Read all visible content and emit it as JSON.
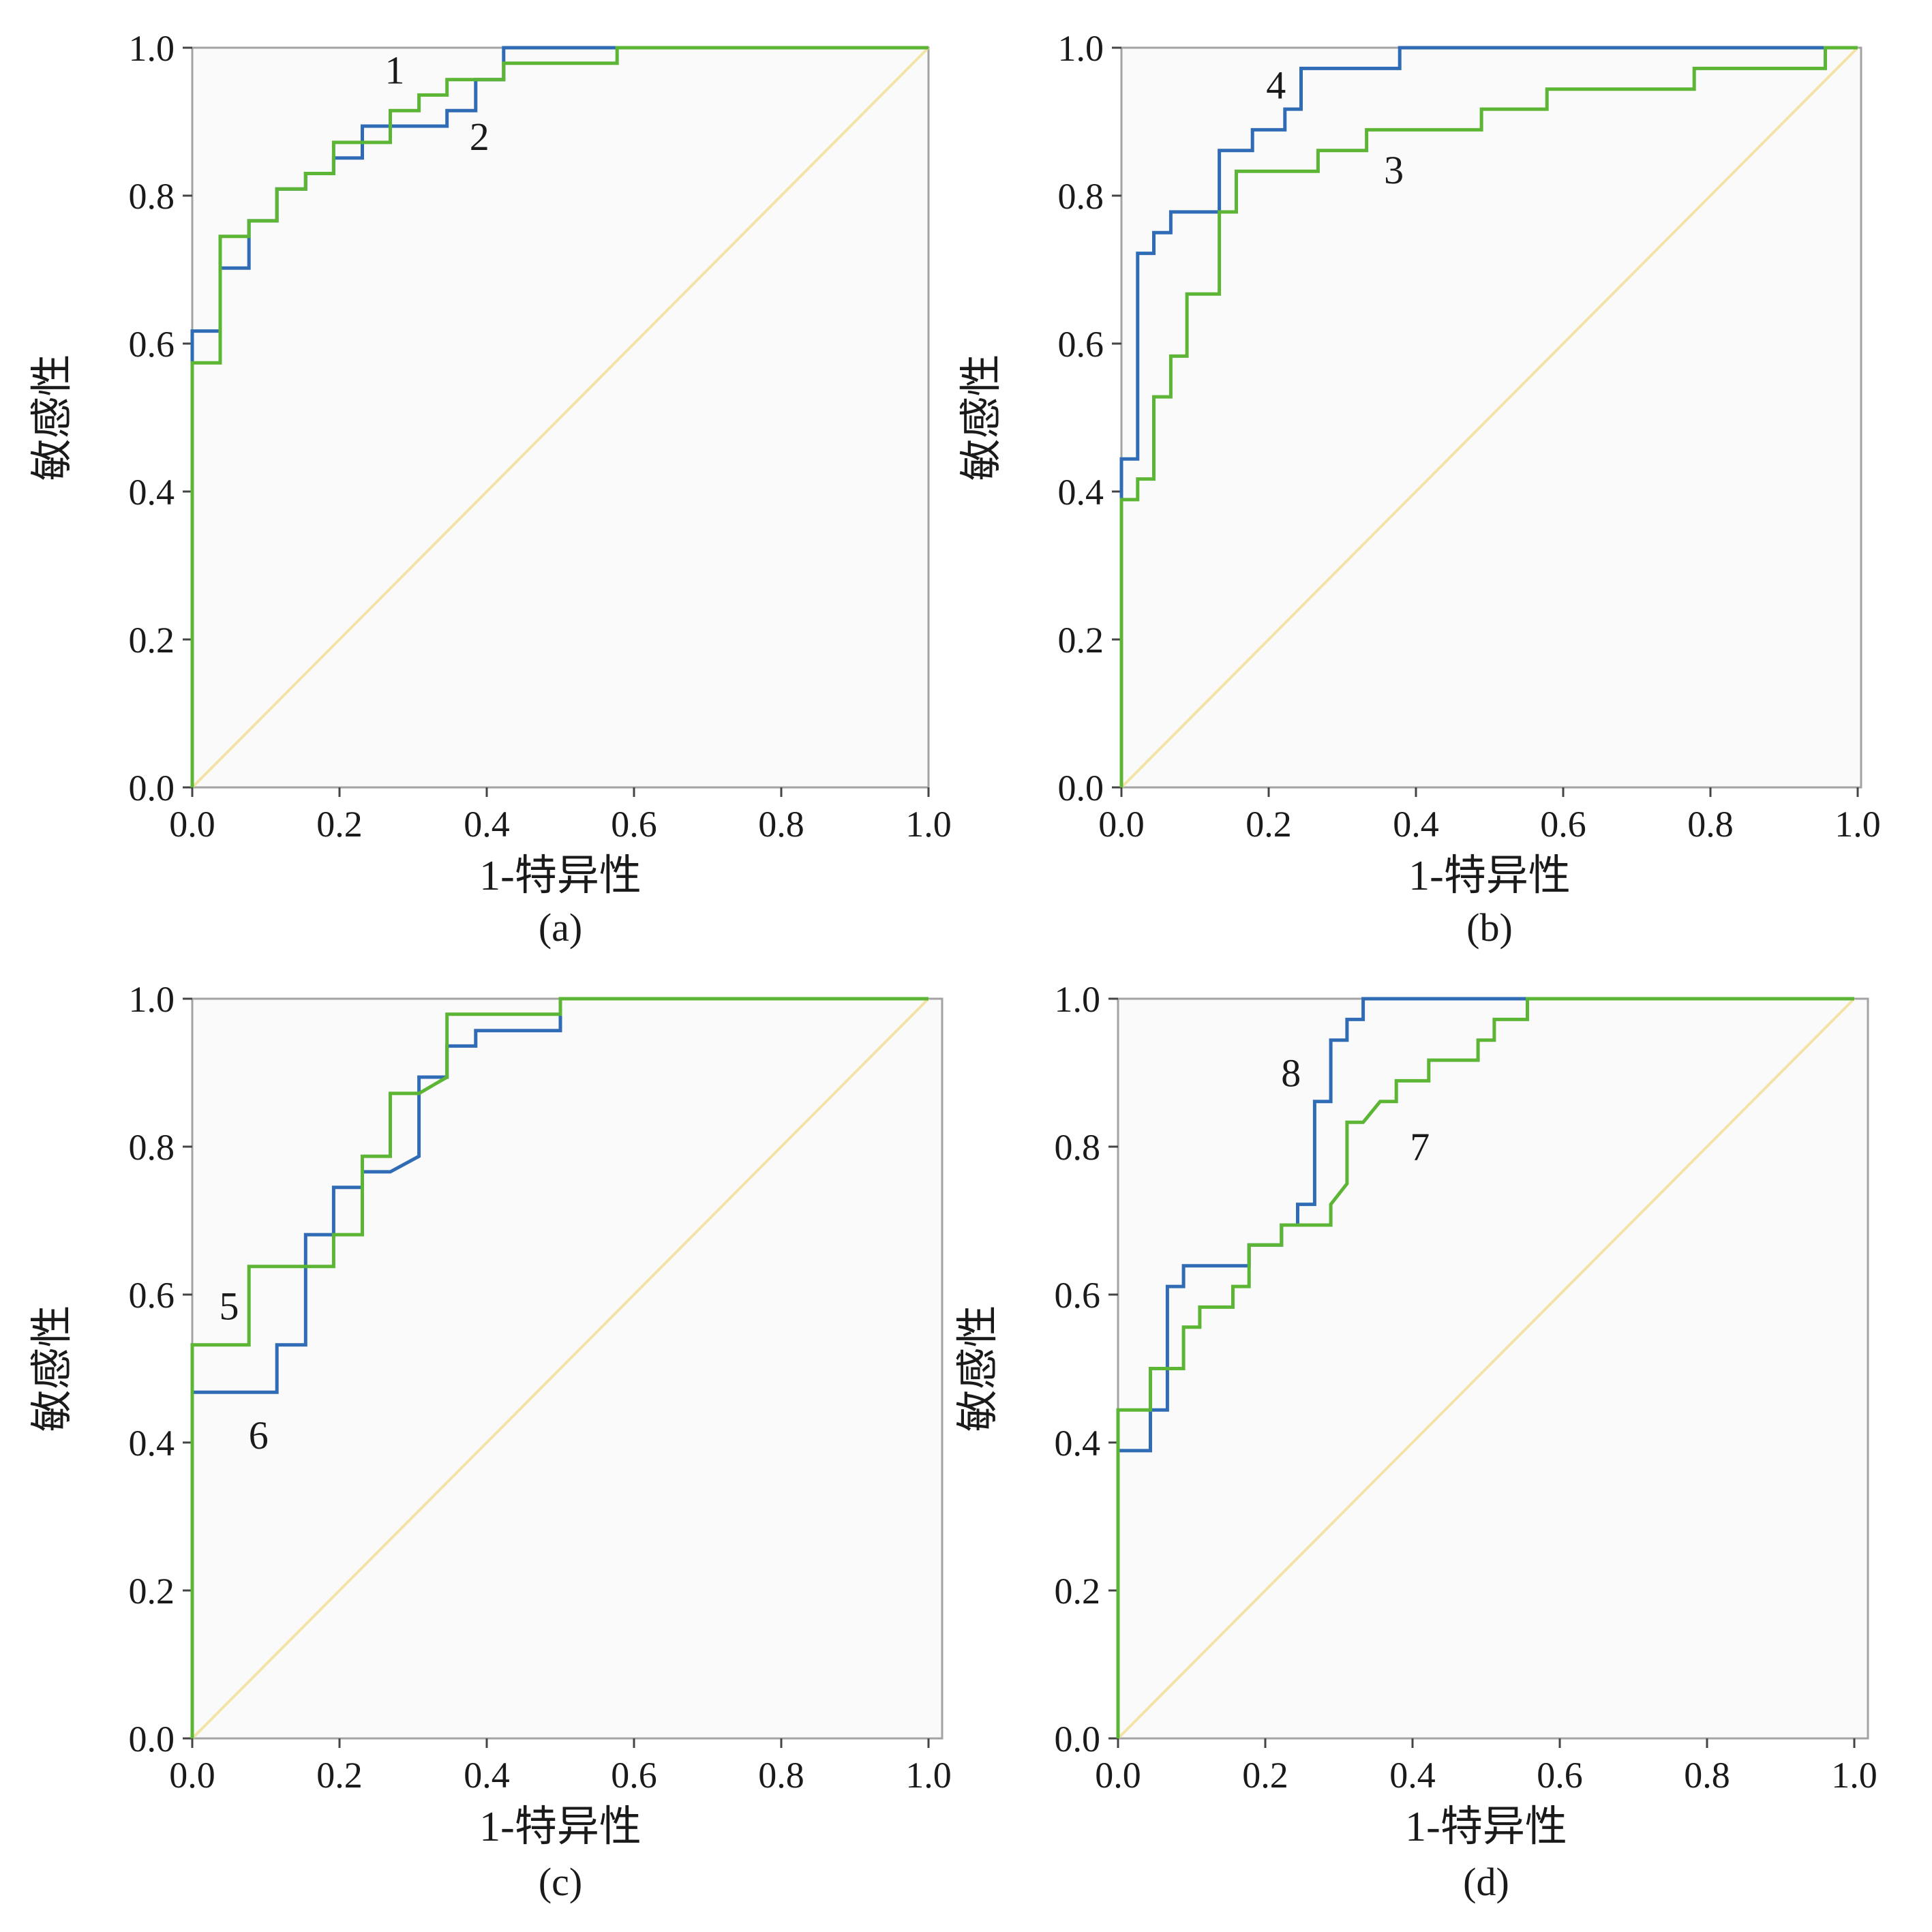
{
  "colors": {
    "plot_background": "#fbfafa",
    "frame": "#a3a3a3",
    "blue": "#2f6cb5",
    "green": "#5cb535",
    "reference": "#f3e3a6"
  },
  "chart_data": [
    {
      "type": "line",
      "panel": "(a)",
      "xlabel": "1-特异性",
      "ylabel": "敏感性",
      "xlim": [
        0,
        1
      ],
      "ylim": [
        0,
        1
      ],
      "xticks": [
        "0.0",
        "0.2",
        "0.4",
        "0.6",
        "0.8",
        "1.0"
      ],
      "yticks": [
        "0.0",
        "0.2",
        "0.4",
        "0.6",
        "0.8",
        "1.0"
      ],
      "reference_line": true,
      "series": [
        {
          "name": "2",
          "color": "blue",
          "label_at": [
            0.39,
            0.88
          ],
          "points": [
            [
              0,
              0
            ],
            [
              0,
              0.617
            ],
            [
              0.038,
              0.617
            ],
            [
              0.038,
              0.702
            ],
            [
              0.077,
              0.702
            ],
            [
              0.077,
              0.766
            ],
            [
              0.115,
              0.766
            ],
            [
              0.115,
              0.809
            ],
            [
              0.154,
              0.809
            ],
            [
              0.154,
              0.83
            ],
            [
              0.192,
              0.83
            ],
            [
              0.192,
              0.851
            ],
            [
              0.231,
              0.851
            ],
            [
              0.231,
              0.894
            ],
            [
              0.346,
              0.894
            ],
            [
              0.346,
              0.915
            ],
            [
              0.385,
              0.915
            ],
            [
              0.385,
              0.957
            ],
            [
              0.423,
              0.957
            ],
            [
              0.423,
              1.0
            ],
            [
              0.577,
              1.0
            ],
            [
              1.0,
              1.0
            ]
          ]
        },
        {
          "name": "1",
          "color": "green",
          "label_at": [
            0.275,
            0.97
          ],
          "points": [
            [
              0,
              0
            ],
            [
              0,
              0.574
            ],
            [
              0.038,
              0.574
            ],
            [
              0.038,
              0.745
            ],
            [
              0.077,
              0.745
            ],
            [
              0.077,
              0.766
            ],
            [
              0.115,
              0.766
            ],
            [
              0.115,
              0.809
            ],
            [
              0.154,
              0.809
            ],
            [
              0.154,
              0.83
            ],
            [
              0.192,
              0.83
            ],
            [
              0.192,
              0.872
            ],
            [
              0.269,
              0.872
            ],
            [
              0.269,
              0.915
            ],
            [
              0.308,
              0.915
            ],
            [
              0.308,
              0.936
            ],
            [
              0.346,
              0.936
            ],
            [
              0.346,
              0.957
            ],
            [
              0.423,
              0.957
            ],
            [
              0.423,
              0.979
            ],
            [
              0.577,
              0.979
            ],
            [
              0.577,
              1.0
            ],
            [
              1.0,
              1.0
            ]
          ]
        }
      ]
    },
    {
      "type": "line",
      "panel": "(b)",
      "xlabel": "1-特异性",
      "ylabel": "敏感性",
      "xlim": [
        0,
        1
      ],
      "ylim": [
        0,
        1
      ],
      "xticks": [
        "0.0",
        "0.2",
        "0.4",
        "0.6",
        "0.8",
        "1.0"
      ],
      "yticks": [
        "0.0",
        "0.2",
        "0.4",
        "0.6",
        "0.8",
        "1.0"
      ],
      "reference_line": true,
      "series": [
        {
          "name": "4",
          "color": "blue",
          "label_at": [
            0.21,
            0.95
          ],
          "points": [
            [
              0,
              0
            ],
            [
              0,
              0.444
            ],
            [
              0.022,
              0.444
            ],
            [
              0.022,
              0.722
            ],
            [
              0.044,
              0.722
            ],
            [
              0.044,
              0.75
            ],
            [
              0.067,
              0.75
            ],
            [
              0.067,
              0.778
            ],
            [
              0.133,
              0.778
            ],
            [
              0.133,
              0.861
            ],
            [
              0.178,
              0.861
            ],
            [
              0.178,
              0.889
            ],
            [
              0.222,
              0.889
            ],
            [
              0.222,
              0.917
            ],
            [
              0.244,
              0.917
            ],
            [
              0.244,
              0.972
            ],
            [
              0.378,
              0.972
            ],
            [
              0.378,
              1.0
            ],
            [
              1.0,
              1.0
            ]
          ]
        },
        {
          "name": "3",
          "color": "green",
          "label_at": [
            0.37,
            0.835
          ],
          "points": [
            [
              0,
              0
            ],
            [
              0,
              0.389
            ],
            [
              0.022,
              0.389
            ],
            [
              0.022,
              0.417
            ],
            [
              0.044,
              0.417
            ],
            [
              0.044,
              0.528
            ],
            [
              0.067,
              0.528
            ],
            [
              0.067,
              0.583
            ],
            [
              0.089,
              0.583
            ],
            [
              0.089,
              0.667
            ],
            [
              0.133,
              0.667
            ],
            [
              0.133,
              0.778
            ],
            [
              0.156,
              0.778
            ],
            [
              0.156,
              0.833
            ],
            [
              0.267,
              0.833
            ],
            [
              0.267,
              0.861
            ],
            [
              0.333,
              0.861
            ],
            [
              0.333,
              0.889
            ],
            [
              0.489,
              0.889
            ],
            [
              0.489,
              0.917
            ],
            [
              0.578,
              0.917
            ],
            [
              0.578,
              0.944
            ],
            [
              0.778,
              0.944
            ],
            [
              0.778,
              0.972
            ],
            [
              0.956,
              0.972
            ],
            [
              0.956,
              1.0
            ],
            [
              1.0,
              1.0
            ]
          ]
        }
      ]
    },
    {
      "type": "line",
      "panel": "(c)",
      "xlabel": "1-特异性",
      "ylabel": "敏感性",
      "xlim": [
        0,
        1
      ],
      "ylim": [
        0,
        1
      ],
      "xticks": [
        "0.0",
        "0.2",
        "0.4",
        "0.6",
        "0.8",
        "1.0"
      ],
      "yticks": [
        "0.0",
        "0.2",
        "0.4",
        "0.6",
        "0.8",
        "1.0"
      ],
      "reference_line": true,
      "series": [
        {
          "name": "6",
          "color": "blue",
          "label_at": [
            0.09,
            0.41
          ],
          "points": [
            [
              0,
              0
            ],
            [
              0,
              0.468
            ],
            [
              0.115,
              0.468
            ],
            [
              0.115,
              0.532
            ],
            [
              0.154,
              0.532
            ],
            [
              0.154,
              0.681
            ],
            [
              0.192,
              0.681
            ],
            [
              0.192,
              0.745
            ],
            [
              0.231,
              0.745
            ],
            [
              0.231,
              0.766
            ],
            [
              0.269,
              0.766
            ],
            [
              0.308,
              0.787
            ],
            [
              0.308,
              0.894
            ],
            [
              0.346,
              0.894
            ],
            [
              0.346,
              0.936
            ],
            [
              0.385,
              0.936
            ],
            [
              0.385,
              0.957
            ],
            [
              0.5,
              0.957
            ],
            [
              0.5,
              1.0
            ],
            [
              1.0,
              1.0
            ]
          ]
        },
        {
          "name": "5",
          "color": "green",
          "label_at": [
            0.05,
            0.585
          ],
          "points": [
            [
              0,
              0
            ],
            [
              0,
              0.532
            ],
            [
              0.077,
              0.532
            ],
            [
              0.077,
              0.638
            ],
            [
              0.192,
              0.638
            ],
            [
              0.192,
              0.681
            ],
            [
              0.231,
              0.681
            ],
            [
              0.231,
              0.787
            ],
            [
              0.269,
              0.787
            ],
            [
              0.269,
              0.872
            ],
            [
              0.308,
              0.872
            ],
            [
              0.346,
              0.894
            ],
            [
              0.346,
              0.979
            ],
            [
              0.5,
              0.979
            ],
            [
              0.5,
              1.0
            ],
            [
              1.0,
              1.0
            ]
          ]
        }
      ]
    },
    {
      "type": "line",
      "panel": "(d)",
      "xlabel": "1-特异性",
      "ylabel": "敏感性",
      "xlim": [
        0,
        1
      ],
      "ylim": [
        0,
        1
      ],
      "xticks": [
        "0.0",
        "0.2",
        "0.4",
        "0.6",
        "0.8",
        "1.0"
      ],
      "yticks": [
        "0.0",
        "0.2",
        "0.4",
        "0.6",
        "0.8",
        "1.0"
      ],
      "reference_line": true,
      "series": [
        {
          "name": "8",
          "color": "blue",
          "label_at": [
            0.235,
            0.9
          ],
          "points": [
            [
              0,
              0
            ],
            [
              0,
              0.389
            ],
            [
              0.044,
              0.389
            ],
            [
              0.044,
              0.444
            ],
            [
              0.067,
              0.444
            ],
            [
              0.067,
              0.611
            ],
            [
              0.089,
              0.611
            ],
            [
              0.089,
              0.639
            ],
            [
              0.178,
              0.639
            ],
            [
              0.178,
              0.667
            ],
            [
              0.222,
              0.667
            ],
            [
              0.222,
              0.694
            ],
            [
              0.244,
              0.694
            ],
            [
              0.244,
              0.722
            ],
            [
              0.267,
              0.722
            ],
            [
              0.267,
              0.861
            ],
            [
              0.289,
              0.861
            ],
            [
              0.289,
              0.944
            ],
            [
              0.311,
              0.944
            ],
            [
              0.311,
              0.972
            ],
            [
              0.333,
              0.972
            ],
            [
              0.333,
              1.0
            ],
            [
              1.0,
              1.0
            ]
          ]
        },
        {
          "name": "7",
          "color": "green",
          "label_at": [
            0.41,
            0.8
          ],
          "points": [
            [
              0,
              0
            ],
            [
              0,
              0.444
            ],
            [
              0.044,
              0.444
            ],
            [
              0.044,
              0.5
            ],
            [
              0.089,
              0.5
            ],
            [
              0.089,
              0.556
            ],
            [
              0.111,
              0.556
            ],
            [
              0.111,
              0.583
            ],
            [
              0.156,
              0.583
            ],
            [
              0.156,
              0.611
            ],
            [
              0.178,
              0.611
            ],
            [
              0.178,
              0.667
            ],
            [
              0.222,
              0.667
            ],
            [
              0.222,
              0.694
            ],
            [
              0.289,
              0.694
            ],
            [
              0.289,
              0.722
            ],
            [
              0.311,
              0.75
            ],
            [
              0.311,
              0.833
            ],
            [
              0.333,
              0.833
            ],
            [
              0.356,
              0.861
            ],
            [
              0.378,
              0.861
            ],
            [
              0.378,
              0.889
            ],
            [
              0.422,
              0.889
            ],
            [
              0.422,
              0.917
            ],
            [
              0.489,
              0.917
            ],
            [
              0.489,
              0.944
            ],
            [
              0.511,
              0.944
            ],
            [
              0.511,
              0.972
            ],
            [
              0.556,
              0.972
            ],
            [
              0.556,
              1.0
            ],
            [
              1.0,
              1.0
            ]
          ]
        }
      ]
    }
  ]
}
